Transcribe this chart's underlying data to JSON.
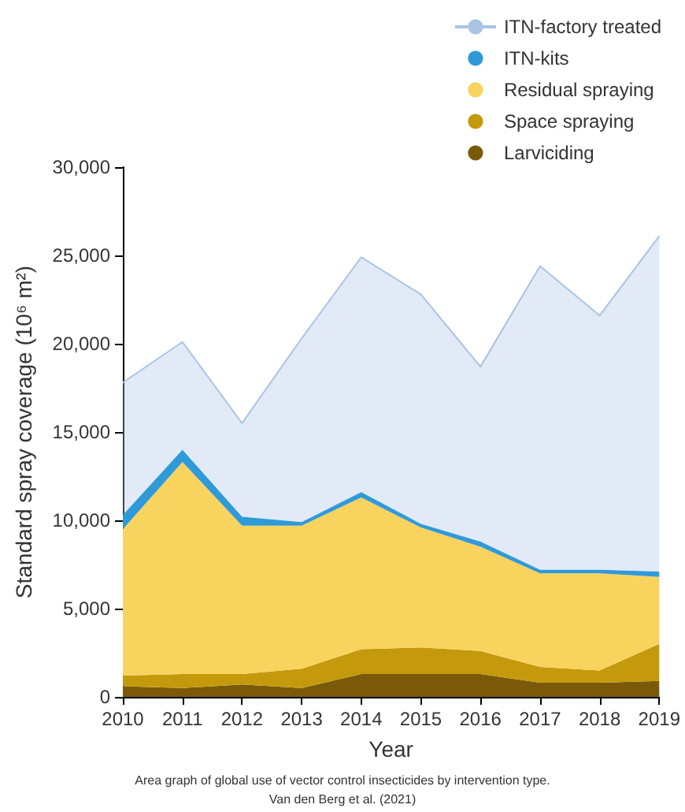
{
  "chart_data": {
    "type": "area",
    "stacked": true,
    "xlabel": "Year",
    "ylabel": "Standard spray coverage (10⁶ m²)",
    "categories": [
      "2010",
      "2011",
      "2012",
      "2013",
      "2014",
      "2015",
      "2016",
      "2017",
      "2018",
      "2019"
    ],
    "ylim": [
      0,
      30000
    ],
    "yticks": [
      {
        "value": 0,
        "label": "0"
      },
      {
        "value": 5000,
        "label": "5,000"
      },
      {
        "value": 10000,
        "label": "10,000"
      },
      {
        "value": 15000,
        "label": "15,000"
      },
      {
        "value": 20000,
        "label": "20,000"
      },
      {
        "value": 25000,
        "label": "25,000"
      },
      {
        "value": 30000,
        "label": "30,000"
      }
    ],
    "series": [
      {
        "name": "Larviciding",
        "color": "#7a5a0a",
        "values": [
          600,
          500,
          700,
          500,
          1300,
          1300,
          1300,
          800,
          800,
          900
        ]
      },
      {
        "name": "Space spraying",
        "color": "#c49a0c",
        "values": [
          600,
          800,
          600,
          1100,
          1400,
          1500,
          1300,
          900,
          700,
          2100
        ]
      },
      {
        "name": "Residual spraying",
        "color": "#f8d35e",
        "values": [
          8300,
          12000,
          8400,
          8100,
          8600,
          6800,
          5900,
          5300,
          5500,
          3800
        ]
      },
      {
        "name": "ITN-kits",
        "color": "#2f9ad8",
        "values": [
          800,
          700,
          500,
          200,
          300,
          200,
          300,
          200,
          200,
          300
        ]
      },
      {
        "name": "ITN-factory treated",
        "color": "#a9c4e4",
        "values": [
          7500,
          6100,
          5300,
          10400,
          13300,
          13000,
          9900,
          17200,
          14400,
          19000
        ]
      }
    ],
    "grid": false,
    "legend": "top right",
    "annotations": [
      "Area graph of global use of vector control insecticides by intervention type.",
      "Van den Berg et al. (2021)"
    ]
  }
}
